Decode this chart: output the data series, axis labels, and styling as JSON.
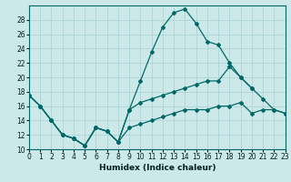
{
  "xlabel": "Humidex (Indice chaleur)",
  "ylabel": "",
  "xlim": [
    0,
    23
  ],
  "ylim": [
    10,
    30
  ],
  "yticks": [
    10,
    12,
    14,
    16,
    18,
    20,
    22,
    24,
    26,
    28
  ],
  "xticks": [
    0,
    1,
    2,
    3,
    4,
    5,
    6,
    7,
    8,
    9,
    10,
    11,
    12,
    13,
    14,
    15,
    16,
    17,
    18,
    19,
    20,
    21,
    22,
    23
  ],
  "bg_color": "#cce8e8",
  "line_color": "#006868",
  "grid_color": "#b0d8d8",
  "lines": [
    {
      "x": [
        0,
        1,
        2,
        3,
        4,
        5,
        6,
        7,
        8,
        9,
        10,
        11,
        12,
        13,
        14,
        15,
        16,
        17,
        18,
        19,
        20
      ],
      "y": [
        17.5,
        16,
        14,
        12,
        11.5,
        10.5,
        13,
        12.5,
        11,
        15.5,
        19.5,
        23.5,
        27,
        29,
        29.5,
        27.5,
        25,
        24.5,
        22,
        20,
        18.5
      ]
    },
    {
      "x": [
        0,
        1,
        2,
        3,
        4,
        5,
        6,
        7,
        8,
        9,
        10,
        11,
        12,
        13,
        14,
        15,
        16,
        17,
        18,
        19,
        20,
        21,
        22,
        23
      ],
      "y": [
        17.5,
        16,
        14,
        12,
        11.5,
        10.5,
        13,
        12.5,
        11,
        15.5,
        16.5,
        17,
        17.5,
        18,
        18.5,
        19,
        19.5,
        19.5,
        21.5,
        20,
        18.5,
        17,
        15.5,
        15
      ]
    },
    {
      "x": [
        0,
        1,
        2,
        3,
        4,
        5,
        6,
        7,
        8,
        9,
        10,
        11,
        12,
        13,
        14,
        15,
        16,
        17,
        18,
        19,
        20,
        21,
        22,
        23
      ],
      "y": [
        17.5,
        16,
        14,
        12,
        11.5,
        10.5,
        13,
        12.5,
        11,
        13,
        13.5,
        14,
        14.5,
        15,
        15.5,
        15.5,
        15.5,
        16,
        16,
        16.5,
        15,
        15.5,
        15.5,
        15
      ]
    }
  ]
}
